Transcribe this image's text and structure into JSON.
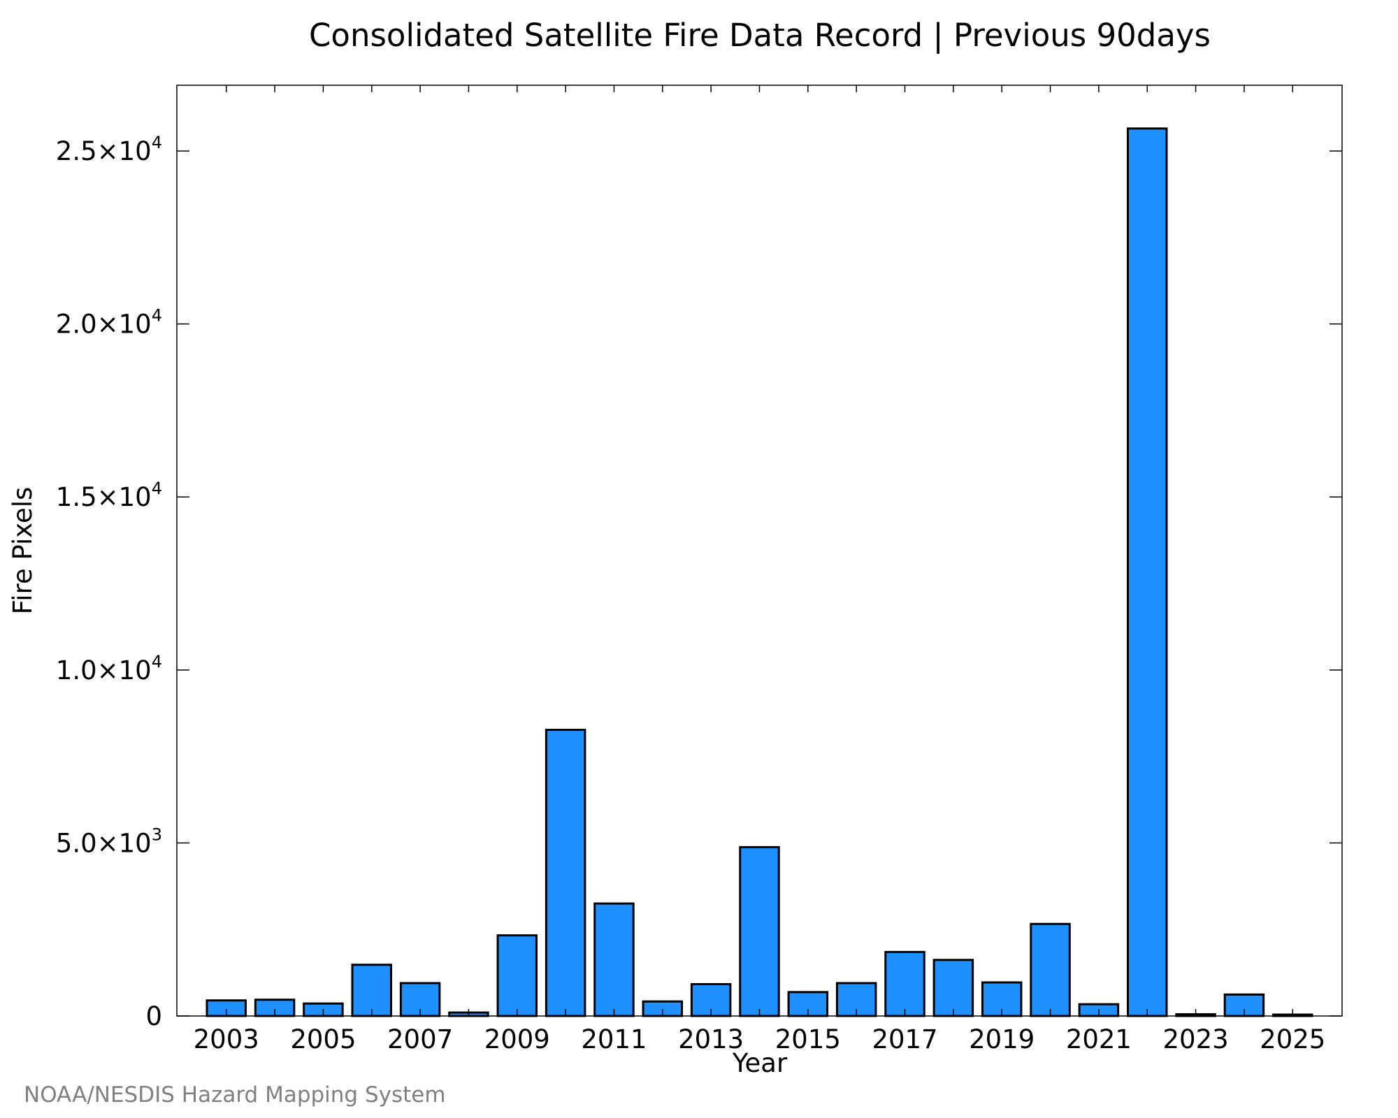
{
  "chart_data": {
    "type": "bar",
    "title": "Consolidated Satellite Fire Data Record | Previous 90days",
    "xlabel": "Year",
    "ylabel": "Fire Pixels",
    "categories": [
      "2003",
      "2004",
      "2005",
      "2006",
      "2007",
      "2008",
      "2009",
      "2010",
      "2011",
      "2012",
      "2013",
      "2014",
      "2015",
      "2016",
      "2017",
      "2018",
      "2019",
      "2020",
      "2021",
      "2022",
      "2023",
      "2024",
      "2025"
    ],
    "values": [
      450,
      470,
      360,
      1480,
      950,
      100,
      2330,
      8270,
      3250,
      420,
      920,
      4880,
      690,
      950,
      1850,
      1620,
      970,
      2660,
      340,
      25650,
      50,
      620,
      40
    ],
    "x_tick_labels": [
      "2003",
      "2005",
      "2007",
      "2009",
      "2011",
      "2013",
      "2015",
      "2017",
      "2019",
      "2021",
      "2023",
      "2025"
    ],
    "y_ticks": [
      {
        "value": 0,
        "mantissa": "0",
        "exponent": ""
      },
      {
        "value": 5000,
        "mantissa": "5.0×10",
        "exponent": "3"
      },
      {
        "value": 10000,
        "mantissa": "1.0×10",
        "exponent": "4"
      },
      {
        "value": 15000,
        "mantissa": "1.5×10",
        "exponent": "4"
      },
      {
        "value": 20000,
        "mantissa": "2.0×10",
        "exponent": "4"
      },
      {
        "value": 25000,
        "mantissa": "2.5×10",
        "exponent": "4"
      }
    ],
    "ylim": [
      0,
      26900
    ],
    "xlim": [
      2001.98,
      2026.02
    ],
    "bar_color": "#1e90ff",
    "grid": false,
    "legend": "none"
  },
  "credit": "NOAA/NESDIS Hazard Mapping System"
}
